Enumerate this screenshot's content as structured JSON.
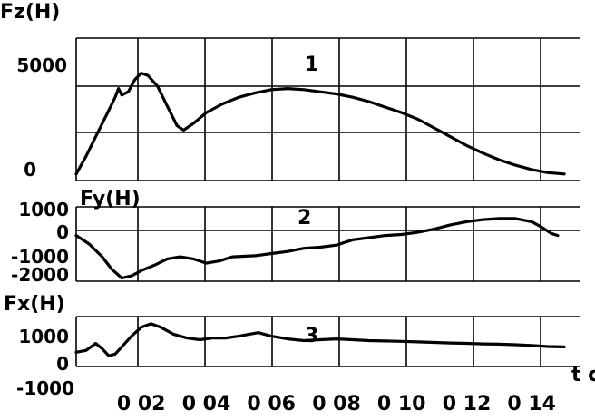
{
  "chart_data": [
    {
      "type": "line",
      "ylabel": "Fz(H)",
      "curve_label": "1",
      "ytick_labels": [
        "5000",
        "0"
      ],
      "yticks": [
        5000,
        0
      ],
      "ylim": [
        -300,
        6200
      ],
      "xlim": [
        0,
        0.155
      ],
      "grid": true,
      "series": [
        {
          "points": [
            [
              0.0,
              0
            ],
            [
              0.003,
              800
            ],
            [
              0.007,
              2000
            ],
            [
              0.01,
              2900
            ],
            [
              0.012,
              3500
            ],
            [
              0.013,
              3900
            ],
            [
              0.014,
              3600
            ],
            [
              0.016,
              3750
            ],
            [
              0.018,
              4300
            ],
            [
              0.02,
              4600
            ],
            [
              0.022,
              4500
            ],
            [
              0.025,
              4000
            ],
            [
              0.028,
              3100
            ],
            [
              0.031,
              2200
            ],
            [
              0.033,
              2000
            ],
            [
              0.036,
              2300
            ],
            [
              0.04,
              2800
            ],
            [
              0.045,
              3200
            ],
            [
              0.05,
              3500
            ],
            [
              0.055,
              3700
            ],
            [
              0.06,
              3850
            ],
            [
              0.065,
              3900
            ],
            [
              0.07,
              3850
            ],
            [
              0.075,
              3750
            ],
            [
              0.08,
              3650
            ],
            [
              0.085,
              3500
            ],
            [
              0.09,
              3300
            ],
            [
              0.095,
              3050
            ],
            [
              0.1,
              2800
            ],
            [
              0.105,
              2500
            ],
            [
              0.11,
              2100
            ],
            [
              0.115,
              1700
            ],
            [
              0.12,
              1300
            ],
            [
              0.125,
              950
            ],
            [
              0.13,
              650
            ],
            [
              0.135,
              400
            ],
            [
              0.14,
              200
            ],
            [
              0.145,
              60
            ],
            [
              0.15,
              0
            ]
          ]
        }
      ]
    },
    {
      "type": "line",
      "ylabel": "Fy(H)",
      "curve_label": "2",
      "ytick_labels": [
        "1000",
        "0",
        "-1000",
        "-2000"
      ],
      "yticks": [
        1000,
        0,
        -1000,
        -2000
      ],
      "ylim": [
        -2150,
        1350
      ],
      "xlim": [
        0,
        0.155
      ],
      "grid": true,
      "series": [
        {
          "points": [
            [
              0.0,
              0
            ],
            [
              0.004,
              -400
            ],
            [
              0.008,
              -1000
            ],
            [
              0.011,
              -1600
            ],
            [
              0.014,
              -2000
            ],
            [
              0.017,
              -1900
            ],
            [
              0.02,
              -1650
            ],
            [
              0.024,
              -1400
            ],
            [
              0.028,
              -1100
            ],
            [
              0.032,
              -1000
            ],
            [
              0.036,
              -1100
            ],
            [
              0.04,
              -1300
            ],
            [
              0.044,
              -1200
            ],
            [
              0.048,
              -1000
            ],
            [
              0.055,
              -950
            ],
            [
              0.06,
              -850
            ],
            [
              0.065,
              -750
            ],
            [
              0.07,
              -600
            ],
            [
              0.075,
              -550
            ],
            [
              0.08,
              -450
            ],
            [
              0.085,
              -200
            ],
            [
              0.09,
              -100
            ],
            [
              0.095,
              0
            ],
            [
              0.1,
              50
            ],
            [
              0.105,
              150
            ],
            [
              0.11,
              300
            ],
            [
              0.115,
              500
            ],
            [
              0.12,
              650
            ],
            [
              0.125,
              750
            ],
            [
              0.13,
              800
            ],
            [
              0.135,
              800
            ],
            [
              0.14,
              650
            ],
            [
              0.143,
              400
            ],
            [
              0.146,
              100
            ],
            [
              0.148,
              0
            ]
          ]
        }
      ]
    },
    {
      "type": "line",
      "ylabel": "Fx(H)",
      "curve_label": "3",
      "ytick_labels": [
        "1000",
        "0",
        "-1000"
      ],
      "yticks": [
        1000,
        0,
        -1000
      ],
      "ylim": [
        -1100,
        1700
      ],
      "xlim": [
        0,
        0.155
      ],
      "grid": true,
      "xlabel": "t c",
      "xtick_labels": [
        "0 02",
        "0 04",
        "0 06",
        "0 08",
        "0 10",
        "0 12",
        "0 14"
      ],
      "xticks": [
        0.02,
        0.04,
        0.06,
        0.08,
        0.1,
        0.12,
        0.14
      ],
      "series": [
        {
          "points": [
            [
              0.0,
              -300
            ],
            [
              0.003,
              -200
            ],
            [
              0.006,
              200
            ],
            [
              0.008,
              -100
            ],
            [
              0.01,
              -500
            ],
            [
              0.012,
              -400
            ],
            [
              0.014,
              0
            ],
            [
              0.017,
              600
            ],
            [
              0.02,
              1100
            ],
            [
              0.023,
              1300
            ],
            [
              0.026,
              1100
            ],
            [
              0.03,
              700
            ],
            [
              0.034,
              500
            ],
            [
              0.038,
              400
            ],
            [
              0.042,
              500
            ],
            [
              0.046,
              500
            ],
            [
              0.05,
              600
            ],
            [
              0.053,
              700
            ],
            [
              0.056,
              800
            ],
            [
              0.06,
              600
            ],
            [
              0.065,
              450
            ],
            [
              0.07,
              350
            ],
            [
              0.075,
              400
            ],
            [
              0.08,
              450
            ],
            [
              0.085,
              400
            ],
            [
              0.09,
              350
            ],
            [
              0.095,
              330
            ],
            [
              0.1,
              310
            ],
            [
              0.105,
              280
            ],
            [
              0.11,
              250
            ],
            [
              0.115,
              220
            ],
            [
              0.12,
              200
            ],
            [
              0.125,
              170
            ],
            [
              0.13,
              150
            ],
            [
              0.135,
              120
            ],
            [
              0.14,
              80
            ],
            [
              0.145,
              20
            ],
            [
              0.15,
              0
            ]
          ]
        }
      ]
    }
  ]
}
